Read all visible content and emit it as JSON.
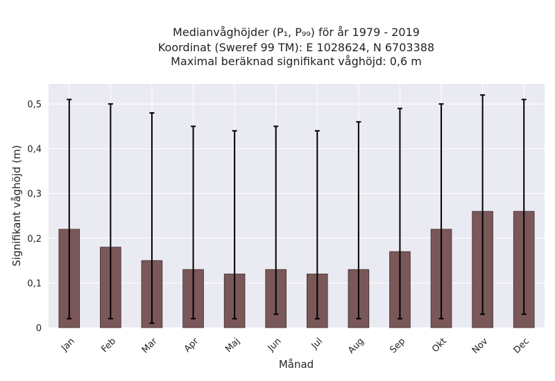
{
  "chart_data": {
    "type": "bar",
    "title_lines": [
      "Medianvåghöjder (P₁, P₉₉) för år 1979 - 2019",
      "Koordinat (Sweref 99 TM): E 1028624, N 6703388",
      "Maximal beräknad signifikant våghöjd: 0,6 m"
    ],
    "xlabel": "Månad",
    "ylabel": "Signifikant våghöjd (m)",
    "categories": [
      "Jan",
      "Feb",
      "Mar",
      "Apr",
      "Maj",
      "Jun",
      "Jul",
      "Aug",
      "Sep",
      "Okt",
      "Nov",
      "Dec"
    ],
    "values": [
      0.22,
      0.18,
      0.15,
      0.13,
      0.12,
      0.13,
      0.12,
      0.13,
      0.17,
      0.22,
      0.26,
      0.26
    ],
    "error_low": [
      0.02,
      0.02,
      0.01,
      0.02,
      0.02,
      0.03,
      0.02,
      0.02,
      0.02,
      0.02,
      0.03,
      0.03
    ],
    "error_high": [
      0.51,
      0.5,
      0.48,
      0.45,
      0.44,
      0.45,
      0.44,
      0.46,
      0.49,
      0.5,
      0.52,
      0.51
    ],
    "ylim": [
      0,
      0.545
    ],
    "yticks": [
      0,
      0.1,
      0.2,
      0.3,
      0.4,
      0.5
    ],
    "ytick_labels": [
      "0",
      "0,1",
      "0,2",
      "0,3",
      "0,4",
      "0,5"
    ],
    "grid": true,
    "colors": {
      "bar": "#7a5758",
      "bar_edge": "#3f2e2e",
      "error": "#000000",
      "background": "#eaeaf2",
      "grid": "#ffffff"
    }
  }
}
